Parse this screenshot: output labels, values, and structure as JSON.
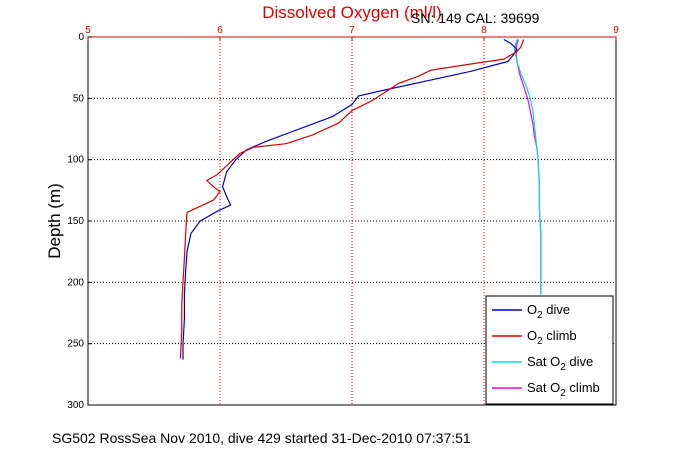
{
  "chart_data": {
    "type": "line",
    "title": "Dissolved Oxygen (ml/l)",
    "top_label": "SN: 149  CAL: 39699",
    "ylabel": "Depth (m)",
    "xlim": [
      5,
      9
    ],
    "ylim": [
      300,
      0
    ],
    "xticks": [
      "5",
      "6",
      "7",
      "8",
      "9"
    ],
    "yticks": [
      "0",
      "50",
      "100",
      "150",
      "200",
      "250",
      "300"
    ],
    "grid": true,
    "legend_position": "bottom-right",
    "colors": {
      "title": "#e00000",
      "x_axis": "#e00000",
      "o2_dive": "#0000cc",
      "o2_climb": "#dd0000",
      "sat_dive": "#00dddd",
      "sat_climb": "#ee00ee"
    },
    "series": [
      {
        "name": "O2 dive",
        "legend_main": "O",
        "legend_sub": "2",
        "legend_rest": " dive",
        "color": "#0000cc",
        "points": [
          [
            8.15,
            2
          ],
          [
            8.2,
            5
          ],
          [
            8.25,
            10
          ],
          [
            8.22,
            15
          ],
          [
            8.18,
            20
          ],
          [
            7.9,
            28
          ],
          [
            7.6,
            35
          ],
          [
            7.3,
            42
          ],
          [
            7.05,
            48
          ],
          [
            7.0,
            55
          ],
          [
            6.85,
            65
          ],
          [
            6.6,
            75
          ],
          [
            6.35,
            85
          ],
          [
            6.2,
            92
          ],
          [
            6.12,
            100
          ],
          [
            6.05,
            110
          ],
          [
            6.02,
            122
          ],
          [
            6.05,
            130
          ],
          [
            6.08,
            137
          ],
          [
            5.98,
            142
          ],
          [
            5.85,
            150
          ],
          [
            5.78,
            160
          ],
          [
            5.75,
            175
          ],
          [
            5.74,
            190
          ],
          [
            5.73,
            210
          ],
          [
            5.73,
            230
          ],
          [
            5.72,
            250
          ],
          [
            5.72,
            263
          ]
        ]
      },
      {
        "name": "O2 climb",
        "legend_main": "O",
        "legend_sub": "2",
        "legend_rest": " climb",
        "color": "#dd0000",
        "points": [
          [
            8.3,
            2
          ],
          [
            8.28,
            8
          ],
          [
            8.25,
            12
          ],
          [
            8.15,
            18
          ],
          [
            7.9,
            22
          ],
          [
            7.6,
            27
          ],
          [
            7.5,
            32
          ],
          [
            7.35,
            38
          ],
          [
            7.25,
            45
          ],
          [
            7.15,
            52
          ],
          [
            7.0,
            60
          ],
          [
            6.9,
            70
          ],
          [
            6.7,
            80
          ],
          [
            6.5,
            87
          ],
          [
            6.25,
            90
          ],
          [
            6.15,
            95
          ],
          [
            6.05,
            105
          ],
          [
            5.98,
            112
          ],
          [
            5.9,
            117
          ],
          [
            5.95,
            122
          ],
          [
            6.0,
            126
          ],
          [
            5.95,
            133
          ],
          [
            5.85,
            138
          ],
          [
            5.75,
            143
          ],
          [
            5.74,
            160
          ],
          [
            5.73,
            180
          ],
          [
            5.72,
            200
          ],
          [
            5.71,
            220
          ],
          [
            5.71,
            240
          ],
          [
            5.7,
            262
          ]
        ]
      },
      {
        "name": "Sat O2 dive",
        "legend_main": "Sat O",
        "legend_sub": "2",
        "legend_rest": " dive",
        "color": "#00dddd",
        "points": [
          [
            8.25,
            2
          ],
          [
            8.23,
            10
          ],
          [
            8.25,
            20
          ],
          [
            8.28,
            30
          ],
          [
            8.32,
            40
          ],
          [
            8.35,
            50
          ],
          [
            8.37,
            60
          ],
          [
            8.38,
            70
          ],
          [
            8.39,
            80
          ],
          [
            8.4,
            90
          ],
          [
            8.41,
            100
          ],
          [
            8.42,
            120
          ],
          [
            8.42,
            140
          ],
          [
            8.43,
            160
          ],
          [
            8.43,
            180
          ],
          [
            8.43,
            200
          ],
          [
            8.43,
            210
          ]
        ]
      },
      {
        "name": "Sat O2 climb",
        "legend_main": "Sat O",
        "legend_sub": "2",
        "legend_rest": " climb",
        "color": "#ee00ee",
        "points": [
          [
            8.26,
            2
          ],
          [
            8.24,
            10
          ],
          [
            8.25,
            20
          ],
          [
            8.27,
            30
          ],
          [
            8.3,
            40
          ],
          [
            8.33,
            50
          ],
          [
            8.35,
            60
          ],
          [
            8.37,
            70
          ],
          [
            8.38,
            80
          ],
          [
            8.4,
            90
          ],
          [
            8.41,
            100
          ],
          [
            8.42,
            120
          ],
          [
            8.42,
            140
          ],
          [
            8.43,
            160
          ],
          [
            8.43,
            180
          ],
          [
            8.43,
            200
          ],
          [
            8.43,
            210
          ]
        ]
      }
    ]
  },
  "caption": "SG502 RossSea Nov 2010, dive 429 started 31-Dec-2010 07:37:51"
}
